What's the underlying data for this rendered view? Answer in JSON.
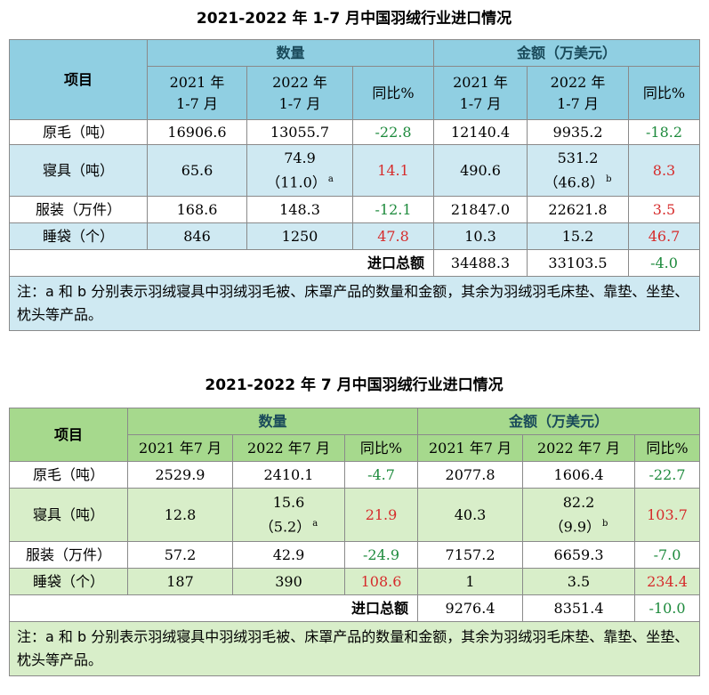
{
  "table1": {
    "title": "2021-2022 年 1-7 月中国羽绒行业进口情况",
    "item_header": "项目",
    "qty_header": "数量",
    "amt_header": "金额（万美元）",
    "col_2021": "2021 年\n1-7 月",
    "col_2022": "2022 年\n1-7 月",
    "col_yoy": "同比%",
    "rows": [
      {
        "label": "原毛（吨）",
        "q21": "16906.6",
        "q22": "13055.7",
        "q22sub": "",
        "q22sup": "",
        "qy": "-22.8",
        "a21": "12140.4",
        "a22": "9935.2",
        "a22sub": "",
        "a22sup": "",
        "ay": "-18.2"
      },
      {
        "label": "寝具（吨）",
        "q21": "65.6",
        "q22": "74.9",
        "q22sub": "（11.0）",
        "q22sup": "a",
        "qy": "14.1",
        "a21": "490.6",
        "a22": "531.2",
        "a22sub": "（46.8）",
        "a22sup": "b",
        "ay": "8.3"
      },
      {
        "label": "服装（万件）",
        "q21": "168.6",
        "q22": "148.3",
        "q22sub": "",
        "q22sup": "",
        "qy": "-12.1",
        "a21": "21847.0",
        "a22": "22621.8",
        "a22sub": "",
        "a22sup": "",
        "ay": "3.5"
      },
      {
        "label": "睡袋（个）",
        "q21": "846",
        "q22": "1250",
        "q22sub": "",
        "q22sup": "",
        "qy": "47.8",
        "a21": "10.3",
        "a22": "15.2",
        "a22sub": "",
        "a22sup": "",
        "ay": "46.7"
      }
    ],
    "total_label": "进口总额",
    "total_2021": "34488.3",
    "total_2022": "33103.5",
    "total_yoy": "-4.0",
    "note": "注：a 和 b 分别表示羽绒寝具中羽绒羽毛被、床罩产品的数量和金额，其余为羽绒羽毛床垫、靠垫、坐垫、枕头等产品。"
  },
  "table2": {
    "title": "2021-2022 年 7 月中国羽绒行业进口情况",
    "item_header": "项目",
    "qty_header": "数量",
    "amt_header": "金额（万美元）",
    "col_2021": "2021 年7 月",
    "col_2022": "2022 年7 月",
    "col_yoy": "同比%",
    "rows": [
      {
        "label": "原毛（吨）",
        "q21": "2529.9",
        "q22": "2410.1",
        "q22sub": "",
        "q22sup": "",
        "qy": "-4.7",
        "a21": "2077.8",
        "a22": "1606.4",
        "a22sub": "",
        "a22sup": "",
        "ay": "-22.7"
      },
      {
        "label": "寝具（吨）",
        "q21": "12.8",
        "q22": "15.6",
        "q22sub": "（5.2）",
        "q22sup": "a",
        "qy": "21.9",
        "a21": "40.3",
        "a22": "82.2",
        "a22sub": "（9.9）",
        "a22sup": "b",
        "ay": "103.7"
      },
      {
        "label": "服装（万件）",
        "q21": "57.2",
        "q22": "42.9",
        "q22sub": "",
        "q22sup": "",
        "qy": "-24.9",
        "a21": "7157.2",
        "a22": "6659.3",
        "a22sub": "",
        "a22sup": "",
        "ay": "-7.0"
      },
      {
        "label": "睡袋（个）",
        "q21": "187",
        "q22": "390",
        "q22sub": "",
        "q22sup": "",
        "qy": "108.6",
        "a21": "1",
        "a22": "3.5",
        "a22sub": "",
        "a22sup": "",
        "ay": "234.4"
      }
    ],
    "total_label": "进口总额",
    "total_2021": "9276.4",
    "total_2022": "8351.4",
    "total_yoy": "-10.0",
    "note": "注：a 和 b 分别表示羽绒寝具中羽绒羽毛被、床罩产品的数量和金额，其余为羽绒羽毛床垫、靠垫、坐垫、枕头等产品。"
  },
  "colors": {
    "positive": "#d62b2b",
    "negative": "#1d8a3c",
    "blue_header": "#90cfe2",
    "blue_alt": "#cfe9f2",
    "green_header": "#a6d98d",
    "green_alt": "#d8eec9"
  }
}
